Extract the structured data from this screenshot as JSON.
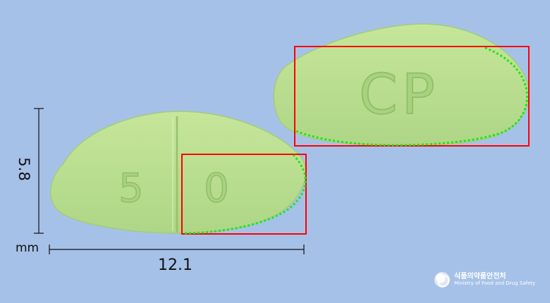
{
  "pill": {
    "left_imprint": {
      "left": "5",
      "right": "0"
    },
    "right_imprint": "CP"
  },
  "dimensions": {
    "height": "5.8",
    "width": "12.1",
    "unit": "mm"
  },
  "logo": {
    "korean": "식품의약품안전처",
    "english": "Ministry of Food and Drug Safety"
  },
  "colors": {
    "background": "#a6c1e8",
    "pill": "#b8e08e",
    "highlight_box": "#ff0000",
    "edge_points": "#22e322"
  }
}
